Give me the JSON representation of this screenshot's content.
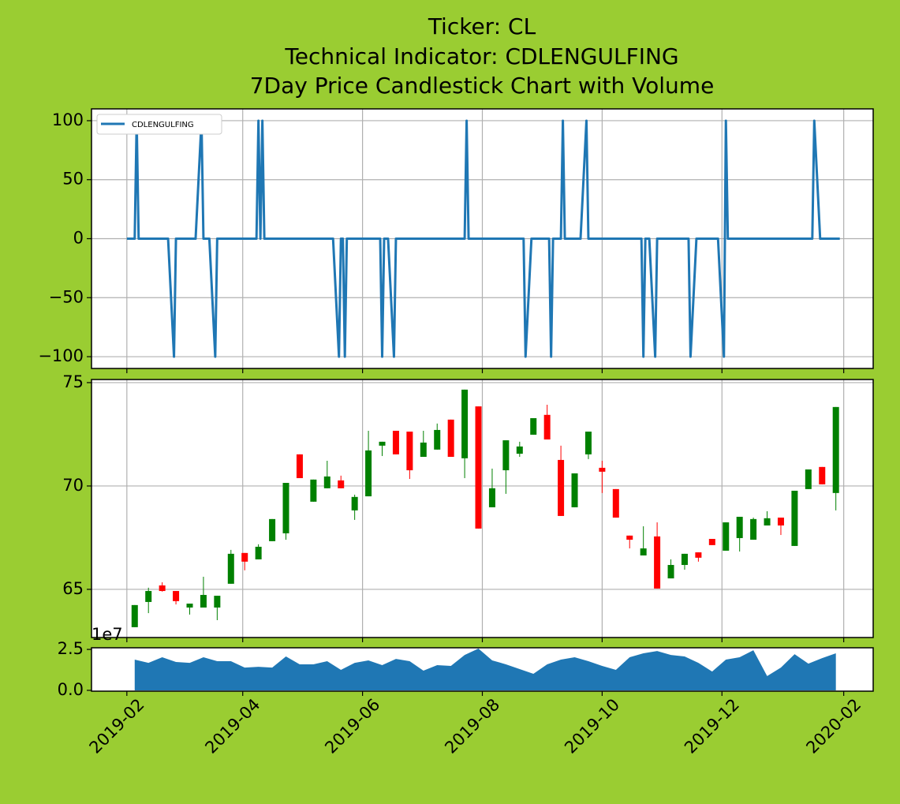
{
  "chart_data": [
    {
      "type": "line",
      "title": [
        "Ticker: CL",
        "Technical Indicator: CDLENGULFING",
        "7Day Price Candlestick Chart with Volume"
      ],
      "x": [
        "2019-02-01",
        "2019-02-05",
        "2019-02-06",
        "2019-02-07",
        "2019-02-22",
        "2019-02-25",
        "2019-02-26",
        "2019-03-08",
        "2019-03-11",
        "2019-03-12",
        "2019-03-15",
        "2019-03-18",
        "2019-03-19",
        "2019-04-08",
        "2019-04-09",
        "2019-04-10",
        "2019-04-11",
        "2019-04-12",
        "2019-05-17",
        "2019-05-20",
        "2019-05-21",
        "2019-05-22",
        "2019-05-23",
        "2019-05-24",
        "2019-06-10",
        "2019-06-11",
        "2019-06-12",
        "2019-06-14",
        "2019-06-17",
        "2019-06-18",
        "2019-07-23",
        "2019-07-24",
        "2019-07-25",
        "2019-08-22",
        "2019-08-23",
        "2019-08-26",
        "2019-09-04",
        "2019-09-05",
        "2019-09-06",
        "2019-09-10",
        "2019-09-11",
        "2019-09-12",
        "2019-09-20",
        "2019-09-23",
        "2019-09-24",
        "2019-10-21",
        "2019-10-22",
        "2019-10-23",
        "2019-10-25",
        "2019-10-28",
        "2019-10-29",
        "2019-11-14",
        "2019-11-15",
        "2019-11-18",
        "2019-11-29",
        "2019-12-02",
        "2019-12-03",
        "2019-12-04",
        "2020-01-16",
        "2020-01-17",
        "2020-01-20",
        "2020-01-30"
      ],
      "series": [
        {
          "name": "CDLENGULFING",
          "color": "#1f77b4",
          "values": [
            0,
            0,
            100,
            0,
            0,
            -100,
            0,
            0,
            100,
            0,
            0,
            -100,
            0,
            0,
            100,
            0,
            100,
            0,
            0,
            -100,
            0,
            0,
            -100,
            0,
            0,
            -100,
            0,
            0,
            -100,
            0,
            0,
            100,
            0,
            0,
            -100,
            0,
            0,
            -100,
            0,
            0,
            100,
            0,
            0,
            100,
            0,
            0,
            -100,
            0,
            0,
            -100,
            0,
            0,
            -100,
            0,
            0,
            -100,
            100,
            0,
            0,
            100,
            0,
            0
          ]
        }
      ],
      "xlim": [
        "2019-01-14",
        "2020-02-16"
      ],
      "xticks": [
        "2019-02",
        "2019-04",
        "2019-06",
        "2019-08",
        "2019-10",
        "2019-12",
        "2020-02"
      ],
      "ylim": [
        -110,
        110
      ],
      "yticks": [
        {
          "value": -100,
          "label": "−100"
        },
        {
          "value": -50,
          "label": "−50"
        },
        0,
        50,
        100
      ],
      "grid": true,
      "legend": "upper left"
    },
    {
      "type": "candlestick",
      "x": [
        "2019-02-05",
        "2019-02-12",
        "2019-02-19",
        "2019-02-26",
        "2019-03-05",
        "2019-03-12",
        "2019-03-19",
        "2019-03-26",
        "2019-04-02",
        "2019-04-09",
        "2019-04-16",
        "2019-04-23",
        "2019-04-30",
        "2019-05-07",
        "2019-05-14",
        "2019-05-21",
        "2019-05-28",
        "2019-06-04",
        "2019-06-11",
        "2019-06-18",
        "2019-06-25",
        "2019-07-02",
        "2019-07-09",
        "2019-07-16",
        "2019-07-23",
        "2019-07-30",
        "2019-08-06",
        "2019-08-13",
        "2019-08-20",
        "2019-08-27",
        "2019-09-03",
        "2019-09-10",
        "2019-09-17",
        "2019-09-24",
        "2019-10-01",
        "2019-10-08",
        "2019-10-15",
        "2019-10-22",
        "2019-10-29",
        "2019-11-05",
        "2019-11-12",
        "2019-11-19",
        "2019-11-26",
        "2019-12-03",
        "2019-12-10",
        "2019-12-17",
        "2019-12-24",
        "2019-12-31",
        "2020-01-07",
        "2020-01-14",
        "2020-01-21",
        "2020-01-28"
      ],
      "open": [
        63.17,
        64.39,
        65.19,
        64.92,
        64.12,
        64.12,
        64.12,
        65.27,
        66.76,
        66.45,
        67.33,
        67.71,
        71.53,
        69.24,
        69.89,
        70.27,
        68.82,
        69.5,
        71.95,
        72.67,
        72.63,
        71.41,
        71.76,
        73.21,
        71.34,
        73.85,
        68.97,
        70.76,
        71.56,
        72.48,
        73.44,
        71.26,
        68.97,
        71.53,
        70.88,
        69.85,
        67.6,
        66.64,
        67.56,
        65.53,
        66.18,
        66.79,
        67.44,
        66.87,
        67.48,
        67.4,
        68.09,
        68.47,
        67.1,
        69.85,
        70.92,
        69.66
      ],
      "high": [
        64.24,
        65.08,
        65.34,
        64.92,
        64.31,
        65.61,
        64.69,
        66.91,
        66.76,
        67.18,
        68.4,
        70.15,
        71.53,
        70.31,
        71.22,
        70.5,
        69.58,
        72.67,
        72.14,
        72.67,
        72.63,
        72.67,
        73.02,
        73.21,
        74.66,
        73.85,
        70.84,
        72.21,
        72.14,
        73.28,
        73.93,
        71.95,
        70.61,
        72.63,
        71.22,
        69.85,
        67.6,
        68.05,
        68.24,
        66.45,
        66.72,
        66.79,
        67.44,
        68.24,
        68.51,
        68.47,
        68.78,
        68.47,
        69.77,
        70.8,
        70.92,
        73.82
      ],
      "low": [
        63.17,
        63.85,
        64.89,
        64.27,
        63.78,
        64.12,
        63.51,
        65.27,
        65.92,
        66.45,
        67.33,
        67.4,
        70.38,
        69.24,
        69.89,
        69.89,
        68.36,
        69.5,
        71.45,
        71.53,
        70.34,
        71.41,
        71.76,
        71.41,
        70.38,
        67.94,
        68.97,
        69.62,
        71.41,
        72.48,
        72.25,
        68.55,
        68.97,
        71.3,
        69.66,
        68.47,
        66.98,
        66.64,
        65.04,
        65.53,
        65.95,
        66.34,
        67.14,
        66.87,
        66.83,
        67.4,
        68.09,
        67.63,
        67.1,
        69.85,
        70.08,
        68.82
      ],
      "close": [
        64.24,
        64.92,
        64.92,
        64.43,
        64.31,
        64.73,
        64.69,
        66.72,
        66.34,
        67.06,
        68.4,
        70.15,
        70.38,
        70.31,
        70.46,
        69.89,
        69.47,
        71.72,
        72.14,
        71.53,
        70.76,
        72.1,
        72.71,
        71.41,
        74.66,
        67.94,
        69.89,
        72.21,
        71.91,
        73.28,
        72.25,
        68.55,
        70.61,
        72.63,
        70.69,
        68.47,
        67.4,
        66.98,
        65.04,
        66.18,
        66.72,
        66.53,
        67.14,
        68.24,
        68.51,
        68.4,
        68.44,
        68.09,
        69.77,
        70.8,
        70.08,
        73.82
      ],
      "up_color": "green",
      "down_color": "red",
      "xlim": [
        "2019-01-14",
        "2020-02-16"
      ],
      "xticks": [
        "2019-02",
        "2019-04",
        "2019-06",
        "2019-08",
        "2019-10",
        "2019-12",
        "2020-02"
      ],
      "ylim": [
        62.67,
        75.15
      ],
      "yticks": [
        65,
        70,
        75
      ],
      "grid": true
    },
    {
      "type": "area",
      "x": [
        "2019-02-05",
        "2019-02-12",
        "2019-02-19",
        "2019-02-26",
        "2019-03-05",
        "2019-03-12",
        "2019-03-19",
        "2019-03-26",
        "2019-04-02",
        "2019-04-09",
        "2019-04-16",
        "2019-04-23",
        "2019-04-30",
        "2019-05-07",
        "2019-05-14",
        "2019-05-21",
        "2019-05-28",
        "2019-06-04",
        "2019-06-11",
        "2019-06-18",
        "2019-06-25",
        "2019-07-02",
        "2019-07-09",
        "2019-07-16",
        "2019-07-23",
        "2019-07-30",
        "2019-08-06",
        "2019-08-13",
        "2019-08-20",
        "2019-08-27",
        "2019-09-03",
        "2019-09-10",
        "2019-09-17",
        "2019-09-24",
        "2019-10-01",
        "2019-10-08",
        "2019-10-15",
        "2019-10-22",
        "2019-10-29",
        "2019-11-05",
        "2019-11-12",
        "2019-11-19",
        "2019-11-26",
        "2019-12-03",
        "2019-12-10",
        "2019-12-17",
        "2019-12-24",
        "2019-12-31",
        "2020-01-07",
        "2020-01-14",
        "2020-01-21",
        "2020-01-28"
      ],
      "values": [
        1.88,
        1.68,
        2.02,
        1.73,
        1.68,
        2.02,
        1.78,
        1.78,
        1.39,
        1.44,
        1.39,
        2.07,
        1.59,
        1.59,
        1.78,
        1.25,
        1.68,
        1.83,
        1.54,
        1.92,
        1.78,
        1.2,
        1.54,
        1.49,
        2.16,
        2.55,
        1.83,
        1.59,
        1.3,
        1.01,
        1.59,
        1.88,
        2.02,
        1.78,
        1.49,
        1.25,
        2.02,
        2.26,
        2.4,
        2.16,
        2.07,
        1.68,
        1.15,
        1.88,
        2.02,
        2.45,
        0.87,
        1.39,
        2.21,
        1.63,
        1.97,
        2.26
      ],
      "color": "#1f77b4",
      "y_offset_text": "1e7",
      "xlim": [
        "2019-01-14",
        "2020-02-16"
      ],
      "xticks": [
        "2019-02",
        "2019-04",
        "2019-06",
        "2019-08",
        "2019-10",
        "2019-12",
        "2020-02"
      ],
      "ylim": [
        -0.05,
        2.6
      ],
      "yticks": [
        {
          "value": 0,
          "label": "0.0"
        },
        {
          "value": 2.5,
          "label": "2.5"
        }
      ],
      "grid": false
    }
  ]
}
